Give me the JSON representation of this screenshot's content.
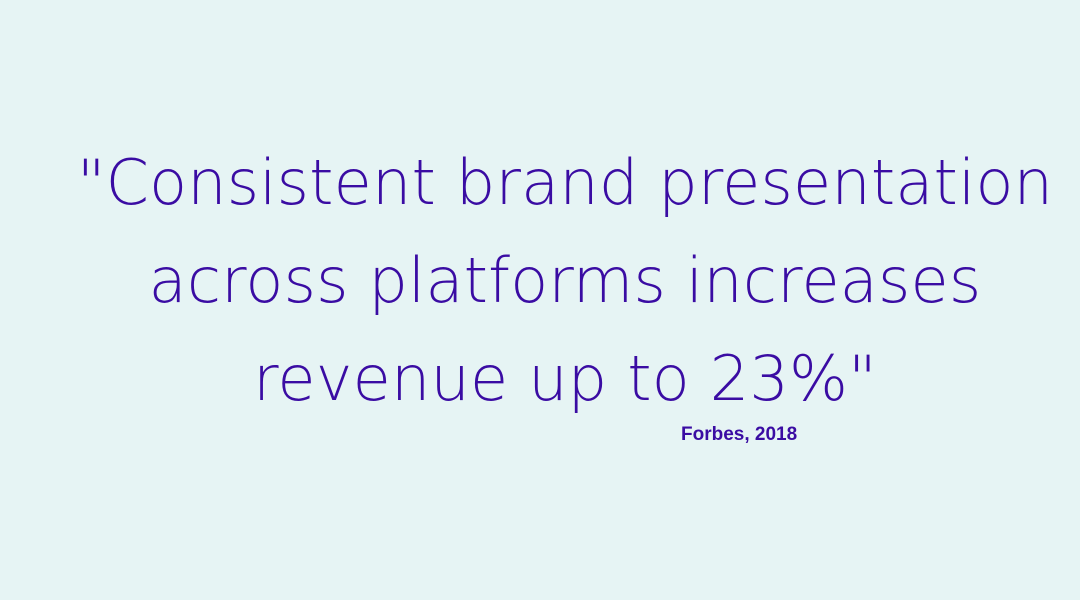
{
  "quote": {
    "lines": [
      "\"Consistent brand presentation",
      "across platforms increases",
      "revenue up to 23%\""
    ],
    "source": "Forbes, 2018"
  },
  "colors": {
    "background": "#e6f4f4",
    "text": "#3a0ca3"
  }
}
